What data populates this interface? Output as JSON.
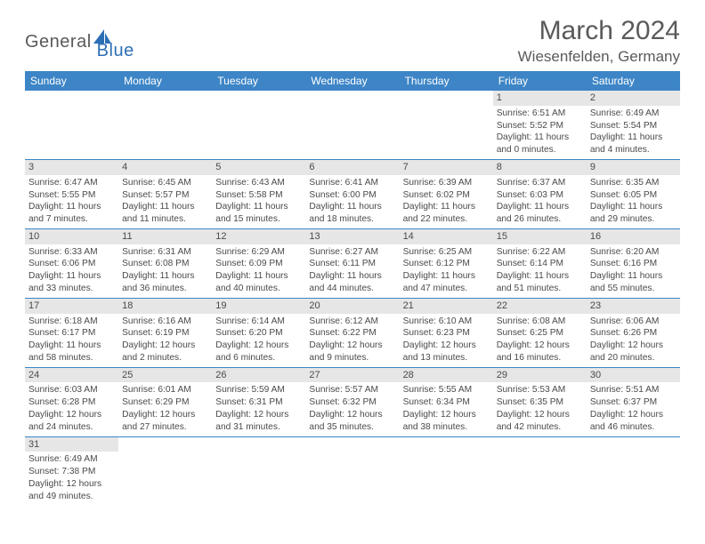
{
  "logo": {
    "text1": "General",
    "text2": "Blue"
  },
  "title": "March 2024",
  "location": "Wiesenfelden, Germany",
  "colors": {
    "header_bg": "#3d85c6",
    "header_text": "#ffffff",
    "daynum_bg": "#e6e6e6",
    "text": "#4a4a4a",
    "accent": "#2d6fb5"
  },
  "weekdays": [
    "Sunday",
    "Monday",
    "Tuesday",
    "Wednesday",
    "Thursday",
    "Friday",
    "Saturday"
  ],
  "weeks": [
    [
      null,
      null,
      null,
      null,
      null,
      {
        "n": "1",
        "sr": "Sunrise: 6:51 AM",
        "ss": "Sunset: 5:52 PM",
        "d1": "Daylight: 11 hours",
        "d2": "and 0 minutes."
      },
      {
        "n": "2",
        "sr": "Sunrise: 6:49 AM",
        "ss": "Sunset: 5:54 PM",
        "d1": "Daylight: 11 hours",
        "d2": "and 4 minutes."
      }
    ],
    [
      {
        "n": "3",
        "sr": "Sunrise: 6:47 AM",
        "ss": "Sunset: 5:55 PM",
        "d1": "Daylight: 11 hours",
        "d2": "and 7 minutes."
      },
      {
        "n": "4",
        "sr": "Sunrise: 6:45 AM",
        "ss": "Sunset: 5:57 PM",
        "d1": "Daylight: 11 hours",
        "d2": "and 11 minutes."
      },
      {
        "n": "5",
        "sr": "Sunrise: 6:43 AM",
        "ss": "Sunset: 5:58 PM",
        "d1": "Daylight: 11 hours",
        "d2": "and 15 minutes."
      },
      {
        "n": "6",
        "sr": "Sunrise: 6:41 AM",
        "ss": "Sunset: 6:00 PM",
        "d1": "Daylight: 11 hours",
        "d2": "and 18 minutes."
      },
      {
        "n": "7",
        "sr": "Sunrise: 6:39 AM",
        "ss": "Sunset: 6:02 PM",
        "d1": "Daylight: 11 hours",
        "d2": "and 22 minutes."
      },
      {
        "n": "8",
        "sr": "Sunrise: 6:37 AM",
        "ss": "Sunset: 6:03 PM",
        "d1": "Daylight: 11 hours",
        "d2": "and 26 minutes."
      },
      {
        "n": "9",
        "sr": "Sunrise: 6:35 AM",
        "ss": "Sunset: 6:05 PM",
        "d1": "Daylight: 11 hours",
        "d2": "and 29 minutes."
      }
    ],
    [
      {
        "n": "10",
        "sr": "Sunrise: 6:33 AM",
        "ss": "Sunset: 6:06 PM",
        "d1": "Daylight: 11 hours",
        "d2": "and 33 minutes."
      },
      {
        "n": "11",
        "sr": "Sunrise: 6:31 AM",
        "ss": "Sunset: 6:08 PM",
        "d1": "Daylight: 11 hours",
        "d2": "and 36 minutes."
      },
      {
        "n": "12",
        "sr": "Sunrise: 6:29 AM",
        "ss": "Sunset: 6:09 PM",
        "d1": "Daylight: 11 hours",
        "d2": "and 40 minutes."
      },
      {
        "n": "13",
        "sr": "Sunrise: 6:27 AM",
        "ss": "Sunset: 6:11 PM",
        "d1": "Daylight: 11 hours",
        "d2": "and 44 minutes."
      },
      {
        "n": "14",
        "sr": "Sunrise: 6:25 AM",
        "ss": "Sunset: 6:12 PM",
        "d1": "Daylight: 11 hours",
        "d2": "and 47 minutes."
      },
      {
        "n": "15",
        "sr": "Sunrise: 6:22 AM",
        "ss": "Sunset: 6:14 PM",
        "d1": "Daylight: 11 hours",
        "d2": "and 51 minutes."
      },
      {
        "n": "16",
        "sr": "Sunrise: 6:20 AM",
        "ss": "Sunset: 6:16 PM",
        "d1": "Daylight: 11 hours",
        "d2": "and 55 minutes."
      }
    ],
    [
      {
        "n": "17",
        "sr": "Sunrise: 6:18 AM",
        "ss": "Sunset: 6:17 PM",
        "d1": "Daylight: 11 hours",
        "d2": "and 58 minutes."
      },
      {
        "n": "18",
        "sr": "Sunrise: 6:16 AM",
        "ss": "Sunset: 6:19 PM",
        "d1": "Daylight: 12 hours",
        "d2": "and 2 minutes."
      },
      {
        "n": "19",
        "sr": "Sunrise: 6:14 AM",
        "ss": "Sunset: 6:20 PM",
        "d1": "Daylight: 12 hours",
        "d2": "and 6 minutes."
      },
      {
        "n": "20",
        "sr": "Sunrise: 6:12 AM",
        "ss": "Sunset: 6:22 PM",
        "d1": "Daylight: 12 hours",
        "d2": "and 9 minutes."
      },
      {
        "n": "21",
        "sr": "Sunrise: 6:10 AM",
        "ss": "Sunset: 6:23 PM",
        "d1": "Daylight: 12 hours",
        "d2": "and 13 minutes."
      },
      {
        "n": "22",
        "sr": "Sunrise: 6:08 AM",
        "ss": "Sunset: 6:25 PM",
        "d1": "Daylight: 12 hours",
        "d2": "and 16 minutes."
      },
      {
        "n": "23",
        "sr": "Sunrise: 6:06 AM",
        "ss": "Sunset: 6:26 PM",
        "d1": "Daylight: 12 hours",
        "d2": "and 20 minutes."
      }
    ],
    [
      {
        "n": "24",
        "sr": "Sunrise: 6:03 AM",
        "ss": "Sunset: 6:28 PM",
        "d1": "Daylight: 12 hours",
        "d2": "and 24 minutes."
      },
      {
        "n": "25",
        "sr": "Sunrise: 6:01 AM",
        "ss": "Sunset: 6:29 PM",
        "d1": "Daylight: 12 hours",
        "d2": "and 27 minutes."
      },
      {
        "n": "26",
        "sr": "Sunrise: 5:59 AM",
        "ss": "Sunset: 6:31 PM",
        "d1": "Daylight: 12 hours",
        "d2": "and 31 minutes."
      },
      {
        "n": "27",
        "sr": "Sunrise: 5:57 AM",
        "ss": "Sunset: 6:32 PM",
        "d1": "Daylight: 12 hours",
        "d2": "and 35 minutes."
      },
      {
        "n": "28",
        "sr": "Sunrise: 5:55 AM",
        "ss": "Sunset: 6:34 PM",
        "d1": "Daylight: 12 hours",
        "d2": "and 38 minutes."
      },
      {
        "n": "29",
        "sr": "Sunrise: 5:53 AM",
        "ss": "Sunset: 6:35 PM",
        "d1": "Daylight: 12 hours",
        "d2": "and 42 minutes."
      },
      {
        "n": "30",
        "sr": "Sunrise: 5:51 AM",
        "ss": "Sunset: 6:37 PM",
        "d1": "Daylight: 12 hours",
        "d2": "and 46 minutes."
      }
    ],
    [
      {
        "n": "31",
        "sr": "Sunrise: 6:49 AM",
        "ss": "Sunset: 7:38 PM",
        "d1": "Daylight: 12 hours",
        "d2": "and 49 minutes."
      },
      null,
      null,
      null,
      null,
      null,
      null
    ]
  ]
}
